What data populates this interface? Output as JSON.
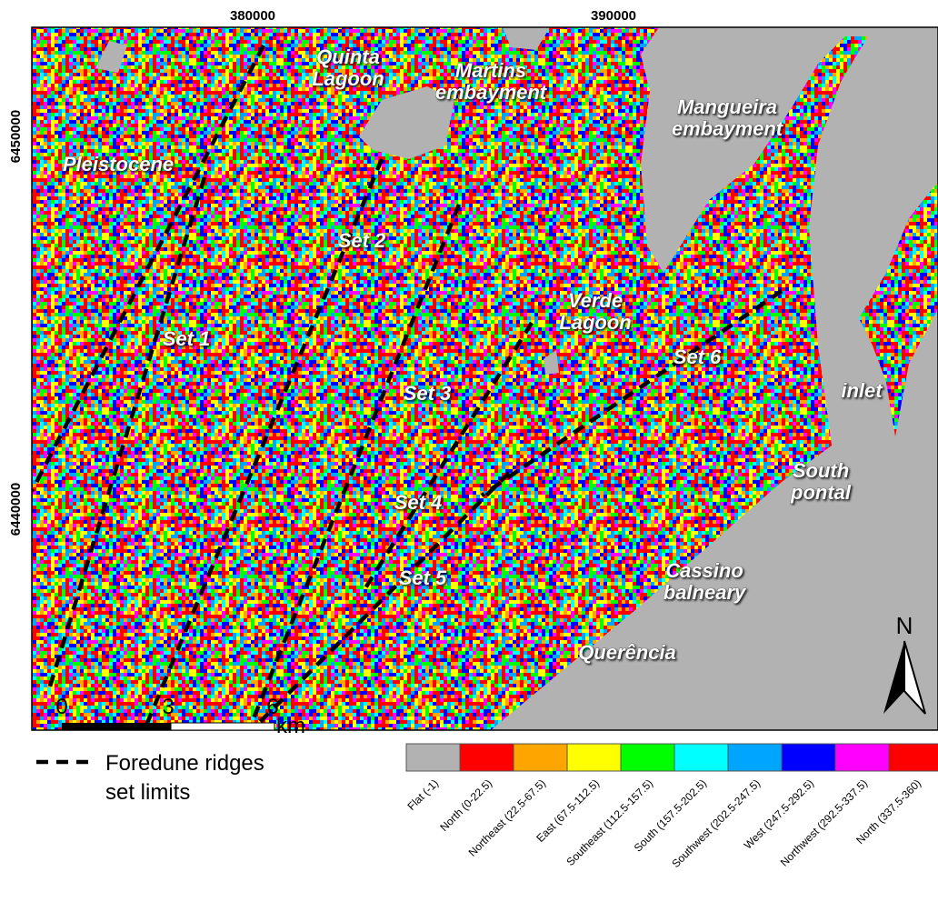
{
  "map": {
    "x_coordinates": [
      "380000",
      "390000"
    ],
    "y_coordinates": [
      "6450000",
      "6440000"
    ],
    "places": [
      {
        "lines": [
          "Quinta",
          "Lagoon"
        ]
      },
      {
        "lines": [
          "Martins",
          "embayment"
        ]
      },
      {
        "lines": [
          "Mangueira",
          "embayment"
        ]
      },
      {
        "lines": [
          "Pleistocene"
        ]
      },
      {
        "lines": [
          "Set 2"
        ]
      },
      {
        "lines": [
          "Set 1"
        ]
      },
      {
        "lines": [
          "Verde",
          "Lagoon"
        ]
      },
      {
        "lines": [
          "Set 6"
        ]
      },
      {
        "lines": [
          "Set 3"
        ]
      },
      {
        "lines": [
          "inlet"
        ]
      },
      {
        "lines": [
          "South",
          "pontal"
        ]
      },
      {
        "lines": [
          "Set 4"
        ]
      },
      {
        "lines": [
          "Set 5"
        ]
      },
      {
        "lines": [
          "Cassino",
          "balneary"
        ]
      },
      {
        "lines": [
          "Querência"
        ]
      }
    ],
    "north": "N"
  },
  "legend": {
    "ridges": [
      "Foredune ridges",
      "set  limits"
    ],
    "scale_bar": {
      "ticks": [
        "0",
        "3",
        "6"
      ],
      "unit": "km"
    },
    "aspect_classes": [
      {
        "label": "Flat (-1)",
        "color": "#b2b2b2"
      },
      {
        "label": "North (0-22.5)",
        "color": "#ff0000"
      },
      {
        "label": "Northeast (22.5-67.5)",
        "color": "#ffa500"
      },
      {
        "label": "East (67.5-112.5)",
        "color": "#ffff00"
      },
      {
        "label": "Southeast (112.5-157.5)",
        "color": "#00ff00"
      },
      {
        "label": "South (157.5-202.5)",
        "color": "#00ffff"
      },
      {
        "label": "Southwest (202.5-247.5)",
        "color": "#00a5ff"
      },
      {
        "label": "West (247.5-292.5)",
        "color": "#0000ff"
      },
      {
        "label": "Northwest (292.5-337.5)",
        "color": "#ff00ff"
      },
      {
        "label": "North (337.5-360)",
        "color": "#ff0000"
      }
    ]
  }
}
